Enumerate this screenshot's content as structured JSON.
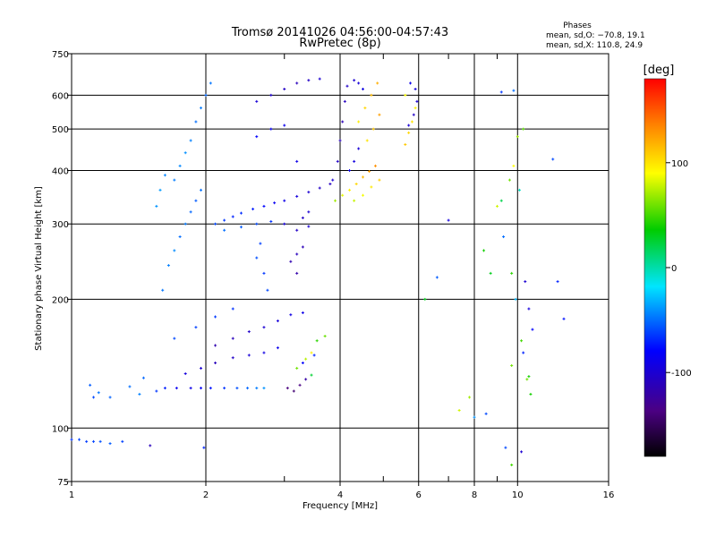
{
  "chart_data": {
    "type": "scatter",
    "title": "Tromsø 20141026 04:56:00-04:57:43",
    "subtitle": "RwPretec (8p)",
    "xlabel": "Frequency [MHz]",
    "ylabel": "Stationary phase Virtual Height [km]",
    "x_scale": "log",
    "y_scale": "log",
    "xlim": [
      1,
      16
    ],
    "ylim": [
      75,
      750
    ],
    "x_ticks": [
      1,
      2,
      4,
      6,
      8,
      10,
      16
    ],
    "x_minor_ticks": [
      3,
      5,
      7,
      9
    ],
    "y_ticks": [
      75,
      100,
      200,
      300,
      400,
      500,
      600,
      750
    ],
    "grid": true,
    "phase_box": {
      "title": "Phases",
      "line_o": "mean, sd,O: −70.8, 19.1",
      "line_x": "mean, sd,X: 110.8, 24.9"
    },
    "colorbar": {
      "label": "[deg]",
      "range": [
        -180,
        180
      ],
      "ticks": [
        100,
        0,
        -100
      ],
      "colormap": "rainbow"
    },
    "series": [
      {
        "points": [
          [
            1.0,
            94,
            -66
          ],
          [
            1.04,
            94,
            -60
          ],
          [
            1.08,
            93,
            -64
          ],
          [
            1.12,
            93,
            -61
          ],
          [
            1.16,
            93,
            -58
          ],
          [
            1.22,
            92,
            -55
          ],
          [
            1.3,
            93,
            -62
          ],
          [
            1.5,
            91,
            -110
          ],
          [
            1.98,
            90,
            -70
          ]
        ]
      },
      {
        "points": [
          [
            1.1,
            126,
            -55
          ],
          [
            1.15,
            121,
            -48
          ],
          [
            1.12,
            118,
            -60
          ],
          [
            1.22,
            118,
            -53
          ],
          [
            1.35,
            125,
            -50
          ],
          [
            1.42,
            120,
            -45
          ],
          [
            1.45,
            131,
            -52
          ]
        ]
      },
      {
        "points": [
          [
            1.55,
            122,
            -65
          ],
          [
            1.62,
            124,
            -72
          ],
          [
            1.72,
            124,
            -85
          ],
          [
            1.85,
            124,
            -90
          ],
          [
            1.95,
            124,
            -82
          ],
          [
            2.05,
            124,
            -75
          ],
          [
            2.2,
            124,
            -66
          ],
          [
            2.35,
            124,
            -58
          ],
          [
            2.48,
            124,
            -52
          ],
          [
            2.6,
            124,
            -46
          ],
          [
            2.7,
            124,
            -40
          ],
          [
            1.8,
            134,
            -95
          ],
          [
            1.95,
            138,
            -100
          ],
          [
            2.1,
            142,
            -110
          ],
          [
            2.3,
            146,
            -105
          ],
          [
            2.5,
            148,
            -98
          ],
          [
            2.7,
            150,
            -92
          ],
          [
            2.9,
            154,
            -88
          ],
          [
            2.1,
            156,
            -116
          ],
          [
            2.3,
            162,
            -110
          ],
          [
            2.5,
            168,
            -104
          ],
          [
            2.7,
            172,
            -100
          ],
          [
            2.9,
            178,
            -96
          ],
          [
            3.1,
            184,
            -92
          ],
          [
            3.3,
            186,
            -90
          ],
          [
            1.7,
            162,
            -60
          ],
          [
            1.9,
            172,
            -62
          ],
          [
            2.1,
            182,
            -64
          ],
          [
            2.3,
            190,
            -66
          ]
        ]
      },
      {
        "points": [
          [
            3.05,
            124,
            -138
          ],
          [
            3.15,
            122,
            -142
          ],
          [
            3.25,
            126,
            -136
          ],
          [
            3.35,
            130,
            -120
          ],
          [
            3.45,
            133,
            25
          ],
          [
            3.2,
            138,
            60
          ],
          [
            3.35,
            145,
            75
          ],
          [
            3.45,
            150,
            95
          ],
          [
            3.55,
            160,
            45
          ],
          [
            3.7,
            164,
            58
          ],
          [
            3.3,
            142,
            -80
          ],
          [
            3.5,
            148,
            -70
          ]
        ]
      },
      {
        "points": [
          [
            1.6,
            210,
            -48
          ],
          [
            1.65,
            240,
            -45
          ],
          [
            1.7,
            260,
            -42
          ],
          [
            1.75,
            280,
            -50
          ],
          [
            1.8,
            300,
            -47
          ],
          [
            1.85,
            320,
            -52
          ],
          [
            1.9,
            340,
            -55
          ],
          [
            1.95,
            360,
            -49
          ],
          [
            1.7,
            380,
            -46
          ],
          [
            1.75,
            410,
            -43
          ],
          [
            1.8,
            440,
            -41
          ],
          [
            1.85,
            470,
            -45
          ],
          [
            1.9,
            520,
            -50
          ],
          [
            1.95,
            560,
            -46
          ],
          [
            2.0,
            600,
            -52
          ],
          [
            2.05,
            640,
            -48
          ],
          [
            1.55,
            330,
            -40
          ],
          [
            1.58,
            360,
            -38
          ],
          [
            1.62,
            390,
            -44
          ]
        ]
      },
      {
        "points": [
          [
            2.1,
            300,
            -60
          ],
          [
            2.2,
            306,
            -65
          ],
          [
            2.3,
            312,
            -70
          ],
          [
            2.4,
            318,
            -68
          ],
          [
            2.55,
            325,
            -72
          ],
          [
            2.7,
            330,
            -78
          ],
          [
            2.85,
            336,
            -85
          ],
          [
            3.0,
            340,
            -90
          ],
          [
            3.2,
            348,
            -95
          ],
          [
            3.4,
            356,
            -100
          ],
          [
            3.6,
            364,
            -105
          ],
          [
            3.8,
            372,
            -108
          ],
          [
            2.2,
            290,
            -50
          ],
          [
            2.4,
            295,
            -55
          ],
          [
            2.6,
            300,
            -60
          ],
          [
            2.8,
            304,
            -66
          ],
          [
            3.0,
            300,
            -95
          ],
          [
            3.2,
            290,
            -105
          ],
          [
            3.4,
            296,
            -100
          ]
        ]
      },
      {
        "points": [
          [
            2.6,
            250,
            -58
          ],
          [
            2.65,
            270,
            -62
          ],
          [
            2.7,
            230,
            -65
          ],
          [
            2.75,
            210,
            -60
          ],
          [
            2.6,
            580,
            -98
          ],
          [
            2.8,
            600,
            -102
          ],
          [
            3.0,
            620,
            -106
          ],
          [
            3.2,
            640,
            -110
          ],
          [
            3.4,
            650,
            -105
          ],
          [
            3.6,
            655,
            -100
          ],
          [
            2.6,
            480,
            -80
          ],
          [
            2.8,
            500,
            -84
          ],
          [
            3.0,
            510,
            -88
          ],
          [
            3.2,
            420,
            -90
          ]
        ]
      },
      {
        "points": [
          [
            3.1,
            245,
            -115
          ],
          [
            3.2,
            255,
            -110
          ],
          [
            3.3,
            265,
            -112
          ],
          [
            3.2,
            230,
            -118
          ],
          [
            3.3,
            310,
            -105
          ],
          [
            3.4,
            320,
            -100
          ]
        ]
      },
      {
        "points": [
          [
            3.85,
            380,
            -100
          ],
          [
            3.95,
            420,
            -105
          ],
          [
            4.0,
            470,
            -110
          ],
          [
            4.05,
            520,
            -112
          ],
          [
            4.1,
            580,
            -108
          ],
          [
            4.15,
            630,
            -104
          ],
          [
            4.3,
            650,
            -100
          ],
          [
            4.4,
            640,
            -96
          ],
          [
            4.5,
            620,
            -92
          ],
          [
            4.2,
            400,
            -90
          ],
          [
            4.3,
            420,
            -94
          ],
          [
            4.4,
            450,
            -98
          ]
        ]
      },
      {
        "points": [
          [
            3.9,
            340,
            70
          ],
          [
            4.05,
            350,
            85
          ],
          [
            4.2,
            360,
            95
          ],
          [
            4.35,
            372,
            105
          ],
          [
            4.5,
            386,
            115
          ],
          [
            4.65,
            398,
            125
          ],
          [
            4.8,
            410,
            130
          ],
          [
            4.3,
            340,
            78
          ],
          [
            4.5,
            350,
            88
          ],
          [
            4.7,
            366,
            98
          ],
          [
            4.9,
            380,
            108
          ]
        ]
      },
      {
        "points": [
          [
            4.4,
            520,
            95
          ],
          [
            4.55,
            560,
            105
          ],
          [
            4.7,
            600,
            115
          ],
          [
            4.85,
            640,
            120
          ],
          [
            4.6,
            470,
            100
          ],
          [
            4.75,
            500,
            110
          ],
          [
            4.9,
            540,
            125
          ]
        ]
      },
      {
        "points": [
          [
            5.6,
            460,
            110
          ],
          [
            5.7,
            490,
            105
          ],
          [
            5.8,
            520,
            100
          ],
          [
            5.9,
            560,
            95
          ],
          [
            5.6,
            600,
            90
          ],
          [
            5.75,
            640,
            -88
          ],
          [
            5.9,
            620,
            -95
          ],
          [
            5.95,
            580,
            -100
          ],
          [
            5.85,
            540,
            -104
          ],
          [
            5.7,
            510,
            -98
          ]
        ]
      },
      {
        "points": [
          [
            8.4,
            260,
            40
          ],
          [
            8.7,
            230,
            30
          ],
          [
            9.2,
            340,
            20
          ],
          [
            9.6,
            380,
            60
          ],
          [
            9.8,
            410,
            90
          ],
          [
            10.1,
            360,
            -5
          ],
          [
            9.0,
            330,
            80
          ],
          [
            9.3,
            280,
            -50
          ],
          [
            9.7,
            230,
            45
          ],
          [
            9.9,
            200,
            -30
          ],
          [
            10.4,
            220,
            -100
          ],
          [
            10.6,
            190,
            -95
          ],
          [
            10.8,
            170,
            -80
          ],
          [
            10.3,
            150,
            -70
          ],
          [
            10.5,
            130,
            60
          ],
          [
            10.7,
            120,
            40
          ],
          [
            9.4,
            90,
            -60
          ],
          [
            10.2,
            88,
            -100
          ],
          [
            9.7,
            82,
            50
          ],
          [
            12.0,
            425,
            -60
          ],
          [
            12.3,
            220,
            -70
          ],
          [
            12.7,
            180,
            -75
          ],
          [
            9.2,
            610,
            -65
          ],
          [
            9.8,
            615,
            -50
          ],
          [
            10.3,
            500,
            55
          ],
          [
            10.0,
            480,
            70
          ],
          [
            6.2,
            200,
            30
          ],
          [
            6.6,
            225,
            -55
          ],
          [
            7.0,
            306,
            -95
          ],
          [
            7.4,
            110,
            80
          ],
          [
            7.8,
            118,
            70
          ],
          [
            8.0,
            106,
            -40
          ],
          [
            8.5,
            108,
            -60
          ],
          [
            10.2,
            160,
            50
          ],
          [
            9.7,
            140,
            60
          ],
          [
            10.6,
            132,
            40
          ]
        ]
      }
    ]
  }
}
